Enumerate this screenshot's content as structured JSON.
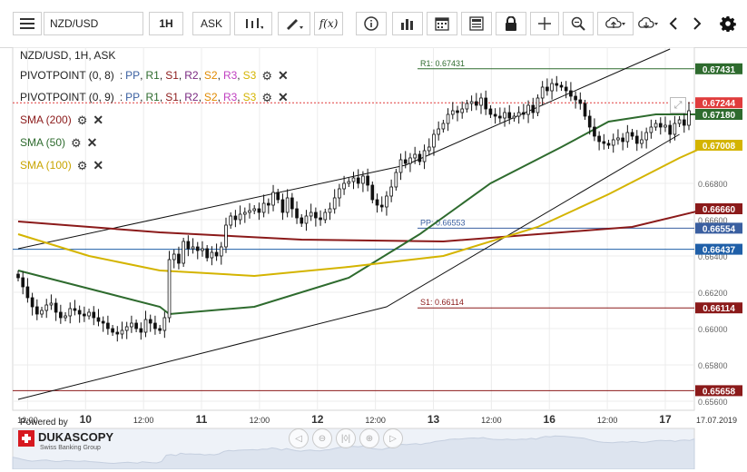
{
  "toolbar": {
    "symbol": "NZD/USD",
    "timeframe": "1H",
    "price_side": "ASK",
    "items": [
      "menu-icon",
      "symbol-select",
      "timeframe-select",
      "price-side-select",
      "candle-type-icon",
      "draw-icon",
      "indicator-fx-icon",
      "info-icon",
      "volume-icon",
      "calendar-icon",
      "news-icon",
      "lock-icon",
      "crosshair-icon",
      "zoom-icon",
      "upload-icon",
      "download-icon",
      "prev-arrow-icon",
      "next-arrow-icon",
      "settings-gear-icon"
    ]
  },
  "chart_data": {
    "type": "candlestick",
    "title": "NZD/USD, 1H, ASK",
    "instrument": "NZD/USD",
    "timeframe": "1H",
    "price_side": "ASK",
    "ylim": [
      0.6555,
      0.6755
    ],
    "y_ticks": [
      0.656,
      0.658,
      0.66,
      0.662,
      0.664,
      0.666,
      0.668
    ],
    "y_tick_labels": [
      "0.65600",
      "0.65800",
      "0.66000",
      "0.66200",
      "0.66400",
      "0.66600",
      "0.66800"
    ],
    "x_ticks": [
      {
        "label": "12:00",
        "bold": false
      },
      {
        "label": "10",
        "bold": true
      },
      {
        "label": "12:00",
        "bold": false
      },
      {
        "label": "11",
        "bold": true
      },
      {
        "label": "12:00",
        "bold": false
      },
      {
        "label": "12",
        "bold": true
      },
      {
        "label": "12:00",
        "bold": false
      },
      {
        "label": "13",
        "bold": true
      },
      {
        "label": "12:00",
        "bold": false
      },
      {
        "label": "16",
        "bold": true
      },
      {
        "label": "12:00",
        "bold": false
      },
      {
        "label": "17",
        "bold": true
      }
    ],
    "x_date_label": "17.07.2019",
    "close_series": [
      0.6628,
      0.6623,
      0.6617,
      0.6612,
      0.6608,
      0.661,
      0.6613,
      0.6614,
      0.6609,
      0.6606,
      0.6607,
      0.6611,
      0.661,
      0.6608,
      0.6607,
      0.6609,
      0.6606,
      0.6604,
      0.6603,
      0.66,
      0.6598,
      0.6597,
      0.6599,
      0.6601,
      0.6603,
      0.66,
      0.6598,
      0.6605,
      0.6603,
      0.66,
      0.6599,
      0.6606,
      0.6638,
      0.6641,
      0.6636,
      0.6648,
      0.6644,
      0.6645,
      0.6643,
      0.6644,
      0.6639,
      0.6642,
      0.664,
      0.6645,
      0.6657,
      0.6662,
      0.666,
      0.6663,
      0.6664,
      0.6665,
      0.6666,
      0.6664,
      0.6669,
      0.6668,
      0.6675,
      0.6671,
      0.6664,
      0.6672,
      0.6666,
      0.6661,
      0.6658,
      0.6662,
      0.6664,
      0.6661,
      0.666,
      0.6664,
      0.6666,
      0.6672,
      0.6677,
      0.668,
      0.6681,
      0.6683,
      0.668,
      0.6684,
      0.6679,
      0.6671,
      0.6668,
      0.6667,
      0.6673,
      0.6678,
      0.6686,
      0.6693,
      0.6691,
      0.6694,
      0.6696,
      0.6692,
      0.6698,
      0.67,
      0.6707,
      0.671,
      0.6713,
      0.6718,
      0.672,
      0.6719,
      0.6721,
      0.6724,
      0.6725,
      0.6723,
      0.6727,
      0.6721,
      0.6718,
      0.6717,
      0.6716,
      0.6719,
      0.6716,
      0.6717,
      0.6719,
      0.6718,
      0.6723,
      0.6719,
      0.6727,
      0.6733,
      0.6731,
      0.6735,
      0.6734,
      0.6733,
      0.6731,
      0.6728,
      0.6726,
      0.6724,
      0.6717,
      0.6711,
      0.6706,
      0.6703,
      0.6702,
      0.6701,
      0.6704,
      0.6705,
      0.6703,
      0.6708,
      0.6706,
      0.6702,
      0.6704,
      0.6708,
      0.6711,
      0.6713,
      0.6711,
      0.6712,
      0.6707,
      0.6713,
      0.6715,
      0.6712,
      0.672
    ],
    "series": [
      {
        "name": "SMA (200)",
        "color": "#8b1a1a",
        "label": "0.66660",
        "points": [
          [
            0,
            0.6659
          ],
          [
            10,
            0.6657
          ],
          [
            30,
            0.6653
          ],
          [
            60,
            0.6649
          ],
          [
            90,
            0.6648
          ],
          [
            110,
            0.6652
          ],
          [
            130,
            0.6656
          ],
          [
            146,
            0.6666
          ]
        ]
      },
      {
        "name": "SMA (50)",
        "color": "#2e6b2e",
        "label": "0.67180",
        "points": [
          [
            0,
            0.6632
          ],
          [
            18,
            0.662
          ],
          [
            30,
            0.6612
          ],
          [
            32,
            0.6608
          ],
          [
            50,
            0.6612
          ],
          [
            70,
            0.6628
          ],
          [
            85,
            0.6652
          ],
          [
            100,
            0.668
          ],
          [
            115,
            0.67
          ],
          [
            125,
            0.6714
          ],
          [
            135,
            0.6718
          ],
          [
            146,
            0.6718
          ]
        ]
      },
      {
        "name": "SMA (100)",
        "color": "#d4b400",
        "label": "0.67008",
        "points": [
          [
            0,
            0.6652
          ],
          [
            15,
            0.664
          ],
          [
            30,
            0.6632
          ],
          [
            50,
            0.6629
          ],
          [
            70,
            0.6634
          ],
          [
            90,
            0.664
          ],
          [
            110,
            0.6656
          ],
          [
            125,
            0.6674
          ],
          [
            140,
            0.6694
          ],
          [
            146,
            0.6701
          ]
        ]
      }
    ],
    "pivot_levels": [
      {
        "name": "R1",
        "text": "R1: 0.67431",
        "value": 0.67431,
        "color": "#2e6b2e",
        "label": "0.67431"
      },
      {
        "name": "PP",
        "text": "PP: 0.66553",
        "value": 0.66553,
        "color": "#3a5fa0",
        "label": "0.66554"
      },
      {
        "name": "S1",
        "text": "S1: 0.66114",
        "value": 0.66114,
        "color": "#8b1a1a",
        "label": "0.66114"
      },
      {
        "name": "level-66437",
        "value": 0.66437,
        "color": "#1f5fa8",
        "label": "0.66437"
      },
      {
        "name": "level-65658",
        "value": 0.65658,
        "color": "#8b1a1a",
        "label": "0.65658"
      }
    ],
    "current_price": {
      "value": 0.67244,
      "label": "0.67244",
      "color": "#e03c3c"
    },
    "channel_lines": [
      {
        "name": "upper-channel",
        "points": [
          [
            0,
            0.6644
          ],
          [
            82,
            0.669
          ],
          [
            138,
            0.6754
          ]
        ]
      },
      {
        "name": "lower-channel",
        "points": [
          [
            0,
            0.6561
          ],
          [
            78,
            0.6612
          ],
          [
            140,
            0.6707
          ]
        ]
      }
    ],
    "grid": true,
    "legend_placement": "top-left"
  },
  "legend": {
    "title": "NZD/USD, 1H, ASK",
    "pivot1": {
      "name": "PIVOTPOINT (0, 8)",
      "pp": "PP",
      "r1": "R1",
      "s1": "S1",
      "r2": "R2",
      "s2": "S2",
      "r3": "R3",
      "s3": "S3"
    },
    "pivot2": {
      "name": "PIVOTPOINT (0, 9)",
      "pp": "PP",
      "r1": "R1",
      "s1": "S1",
      "r2": "R2",
      "s2": "S2",
      "r3": "R3",
      "s3": "S3"
    },
    "sma200": "SMA (200)",
    "sma50": "SMA (50)",
    "sma100": "SMA (100)"
  },
  "branding": {
    "powered_by": "Powered by",
    "logo_name": "DUKASCOPY",
    "logo_sub": "Swiss Banking Group"
  }
}
